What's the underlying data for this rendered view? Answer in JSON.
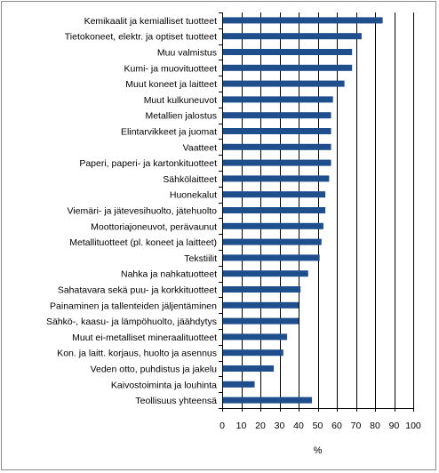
{
  "chart_data": {
    "type": "bar",
    "orientation": "horizontal",
    "categories": [
      "Kemikaalit ja kemialliset tuotteet",
      "Tietokoneet, elektr. ja optiset tuotteet",
      "Muu valmistus",
      "Kumi- ja muovituotteet",
      "Muut koneet ja laitteet",
      "Muut kulkuneuvot",
      "Metallien jalostus",
      "Elintarvikkeet ja juomat",
      "Vaatteet",
      "Paperi, paperi- ja kartonkituotteet",
      "Sähkölaitteet",
      "Huonekalut",
      "Viemäri- ja jätevesihuolto, jätehuolto",
      "Moottoriajoneuvot, perävaunut",
      "Metallituotteet (pl. koneet ja laitteet)",
      "Tekstiilit",
      "Nahka ja nahkatuotteet",
      "Sahatavara sekä puu- ja korkkituotteet",
      "Painaminen ja tallenteiden jäljentäminen",
      "Sähkö-, kaasu- ja lämpöhuolto, jäähdytys",
      "Muut ei-metalliset mineraalituotteet",
      "Kon. ja laitt. korjaus, huolto ja asennus",
      "Veden otto, puhdistus ja jakelu",
      "Kaivostoiminta ja louhinta",
      "Teollisuus yhteensä"
    ],
    "values": [
      84,
      73,
      68,
      68,
      64,
      58,
      57,
      57,
      57,
      57,
      56,
      54,
      54,
      53,
      52,
      51,
      45,
      41,
      40,
      40,
      34,
      32,
      27,
      17,
      47
    ],
    "xlabel": "%",
    "ylabel": "",
    "xlim": [
      0,
      100
    ],
    "xticks": [
      0,
      10,
      20,
      30,
      40,
      50,
      60,
      70,
      80,
      90,
      100
    ],
    "grid": "vertical",
    "legend": "none",
    "bar_color": "#1f4e8c",
    "grid_color": "#000000"
  }
}
